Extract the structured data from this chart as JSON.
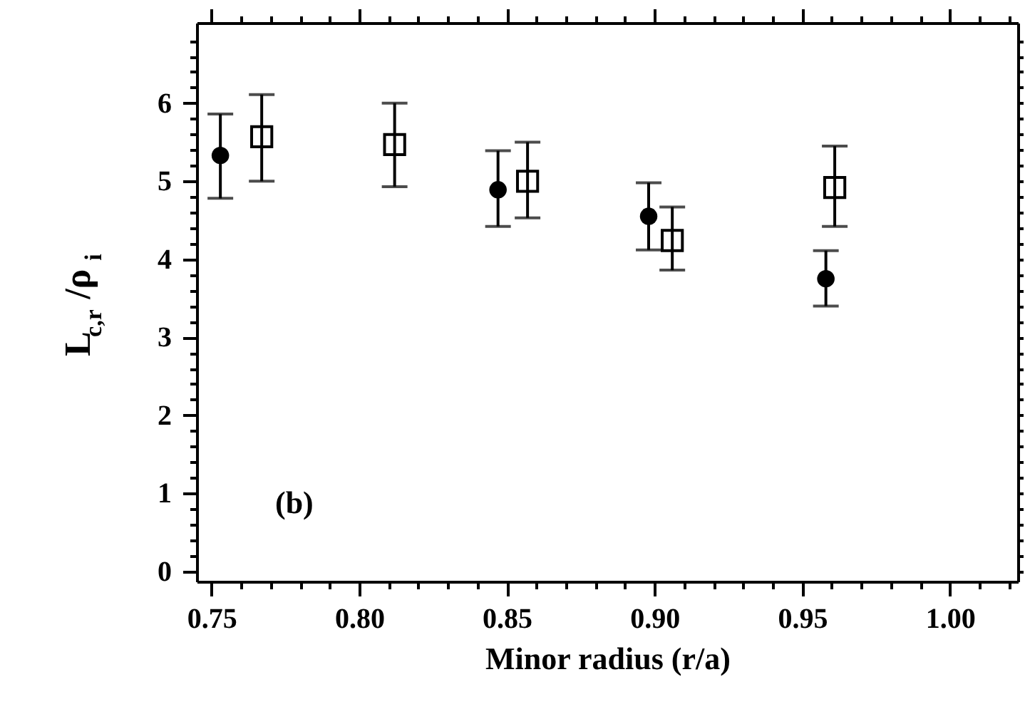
{
  "chart_data": {
    "type": "scatter",
    "xlabel": "Minor radius (r/a)",
    "ylabel": "L$_{c,r}$/ρ$_{i}$",
    "annotations": [
      "(b)"
    ],
    "xlim": [
      0.745,
      1.023
    ],
    "ylim": [
      -0.13,
      7.03
    ],
    "xticks": [
      {
        "value": 0.75,
        "label": "0.75"
      },
      {
        "value": 0.76,
        "label": null
      },
      {
        "value": 0.77,
        "label": null
      },
      {
        "value": 0.78,
        "label": null
      },
      {
        "value": 0.79,
        "label": null
      },
      {
        "value": 0.8,
        "label": "0.80"
      },
      {
        "value": 0.81,
        "label": null
      },
      {
        "value": 0.82,
        "label": null
      },
      {
        "value": 0.83,
        "label": null
      },
      {
        "value": 0.84,
        "label": null
      },
      {
        "value": 0.85,
        "label": "0.85"
      },
      {
        "value": 0.86,
        "label": null
      },
      {
        "value": 0.87,
        "label": null
      },
      {
        "value": 0.88,
        "label": null
      },
      {
        "value": 0.89,
        "label": null
      },
      {
        "value": 0.9,
        "label": "0.90"
      },
      {
        "value": 0.91,
        "label": null
      },
      {
        "value": 0.92,
        "label": null
      },
      {
        "value": 0.93,
        "label": null
      },
      {
        "value": 0.94,
        "label": null
      },
      {
        "value": 0.95,
        "label": "0.95"
      },
      {
        "value": 0.96,
        "label": null
      },
      {
        "value": 0.97,
        "label": null
      },
      {
        "value": 0.98,
        "label": null
      },
      {
        "value": 0.99,
        "label": null
      },
      {
        "value": 1.0,
        "label": "1.00"
      },
      {
        "value": 1.01,
        "label": null
      },
      {
        "value": 1.02,
        "label": null
      }
    ],
    "yticks": [
      0,
      {
        "value": 0.2,
        "label": null
      },
      {
        "value": 0.4,
        "label": null
      },
      {
        "value": 0.6,
        "label": null
      },
      {
        "value": 0.8,
        "label": null
      },
      1,
      {
        "value": 1.2,
        "label": null
      },
      {
        "value": 1.4,
        "label": null
      },
      {
        "value": 1.6,
        "label": null
      },
      {
        "value": 1.8,
        "label": null
      },
      2,
      {
        "value": 2.2,
        "label": null
      },
      {
        "value": 2.4,
        "label": null
      },
      {
        "value": 2.6,
        "label": null
      },
      {
        "value": 2.8,
        "label": null
      },
      3,
      {
        "value": 3.2,
        "label": null
      },
      {
        "value": 3.4,
        "label": null
      },
      {
        "value": 3.6,
        "label": null
      },
      {
        "value": 3.8,
        "label": null
      },
      4,
      {
        "value": 4.2,
        "label": null
      },
      {
        "value": 4.4,
        "label": null
      },
      {
        "value": 4.6,
        "label": null
      },
      {
        "value": 4.8,
        "label": null
      },
      5,
      {
        "value": 5.2,
        "label": null
      },
      {
        "value": 5.4,
        "label": null
      },
      {
        "value": 5.6,
        "label": null
      },
      {
        "value": 5.8,
        "label": null
      },
      6,
      {
        "value": 6.2,
        "label": null
      },
      {
        "value": 6.4,
        "label": null
      },
      {
        "value": 6.6,
        "label": null
      },
      {
        "value": 6.8,
        "label": null
      }
    ],
    "grid": false,
    "series": [
      {
        "color": "#000000",
        "marker": "circle",
        "x": [
          0.753,
          0.847,
          0.898,
          0.958
        ],
        "values": [
          5.33,
          4.89,
          4.55,
          3.75
        ],
        "errors": [
          [
            4.78,
            5.86
          ],
          [
            4.42,
            5.39
          ],
          [
            4.12,
            4.98
          ],
          [
            3.4,
            4.11
          ]
        ]
      },
      {
        "color": "#000000",
        "marker": "square",
        "x": [
          0.767,
          0.812,
          0.857,
          0.906,
          0.961
        ],
        "values": [
          5.57,
          5.47,
          5.0,
          4.24,
          4.92
        ],
        "errors": [
          [
            5.0,
            6.11
          ],
          [
            4.93,
            6.0
          ],
          [
            4.53,
            5.5
          ],
          [
            3.86,
            4.67
          ],
          [
            4.42,
            5.45
          ]
        ]
      }
    ]
  }
}
